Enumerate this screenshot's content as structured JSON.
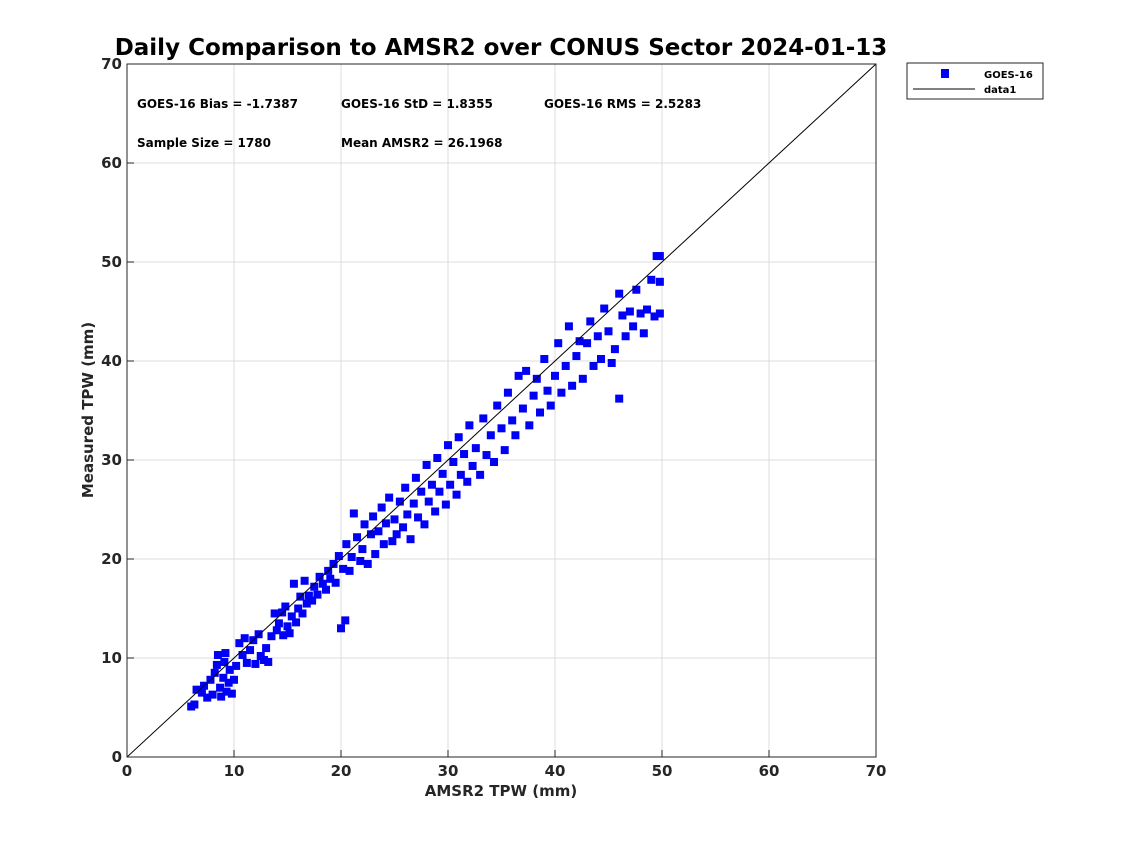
{
  "chart_data": {
    "type": "scatter",
    "title": "Daily Comparison to AMSR2 over CONUS Sector 2024-01-13",
    "xlabel": "AMSR2 TPW (mm)",
    "ylabel": "Measured TPW (mm)",
    "xlim": [
      0,
      70
    ],
    "ylim": [
      0,
      70
    ],
    "xticks": [
      "0",
      "10",
      "20",
      "30",
      "40",
      "50",
      "60",
      "70"
    ],
    "yticks": [
      "0",
      "10",
      "20",
      "30",
      "40",
      "50",
      "60",
      "70"
    ],
    "grid": true,
    "legend_placement": "outside-top-right",
    "legend": [
      "GOES-16",
      "data1"
    ],
    "stats": {
      "bias": "GOES-16 Bias = -1.7387",
      "std": "GOES-16 StD = 1.8355",
      "rms": "GOES-16 RMS = 2.5283",
      "sample_size": "Sample Size = 1780",
      "mean": "Mean AMSR2 = 26.1968"
    },
    "colors": {
      "series": "#0000f5",
      "line": "#000000",
      "grid": "#dcdcdc"
    },
    "reference_line": {
      "name": "data1",
      "x": [
        0,
        70
      ],
      "y": [
        0,
        70
      ]
    },
    "series": [
      {
        "name": "GOES-16",
        "note": "representative subset of the 1780 plotted points",
        "points": [
          [
            6,
            5.1
          ],
          [
            6.3,
            5.3
          ],
          [
            6.5,
            6.8
          ],
          [
            7,
            6.5
          ],
          [
            7.2,
            7.2
          ],
          [
            7.5,
            6
          ],
          [
            7.8,
            7.8
          ],
          [
            8,
            6.3
          ],
          [
            8.2,
            8.5
          ],
          [
            8.4,
            9.3
          ],
          [
            8.5,
            10.3
          ],
          [
            8.7,
            7
          ],
          [
            8.8,
            6.1
          ],
          [
            9,
            8
          ],
          [
            9.1,
            9.6
          ],
          [
            9.2,
            10.5
          ],
          [
            9.3,
            6.6
          ],
          [
            9.5,
            7.5
          ],
          [
            9.6,
            8.8
          ],
          [
            9.8,
            6.4
          ],
          [
            10,
            7.8
          ],
          [
            10.2,
            9.2
          ],
          [
            10.5,
            11.5
          ],
          [
            10.8,
            10.3
          ],
          [
            11,
            12
          ],
          [
            11.2,
            9.5
          ],
          [
            11.5,
            10.8
          ],
          [
            11.8,
            11.8
          ],
          [
            12,
            9.4
          ],
          [
            12.3,
            12.4
          ],
          [
            12.5,
            10.2
          ],
          [
            12.8,
            9.8
          ],
          [
            13,
            11
          ],
          [
            13.2,
            9.6
          ],
          [
            13.5,
            12.2
          ],
          [
            13.8,
            14.5
          ],
          [
            14,
            12.8
          ],
          [
            14.2,
            13.5
          ],
          [
            14.5,
            14.6
          ],
          [
            14.6,
            12.3
          ],
          [
            14.8,
            15.2
          ],
          [
            15,
            13.2
          ],
          [
            15.2,
            12.5
          ],
          [
            15.4,
            14.2
          ],
          [
            15.6,
            17.5
          ],
          [
            15.8,
            13.6
          ],
          [
            16,
            15
          ],
          [
            16.2,
            16.2
          ],
          [
            16.4,
            14.5
          ],
          [
            16.6,
            17.8
          ],
          [
            16.8,
            15.5
          ],
          [
            17,
            16.3
          ],
          [
            17.3,
            15.8
          ],
          [
            17.5,
            17.2
          ],
          [
            17.8,
            16.4
          ],
          [
            18,
            18.2
          ],
          [
            18.3,
            17.5
          ],
          [
            18.6,
            16.9
          ],
          [
            18.8,
            18.8
          ],
          [
            19,
            18
          ],
          [
            19.3,
            19.5
          ],
          [
            19.5,
            17.6
          ],
          [
            19.8,
            20.3
          ],
          [
            20,
            13
          ],
          [
            20.4,
            13.8
          ],
          [
            20.2,
            19
          ],
          [
            20.5,
            21.5
          ],
          [
            20.8,
            18.8
          ],
          [
            21,
            20.2
          ],
          [
            21.2,
            24.6
          ],
          [
            21.5,
            22.2
          ],
          [
            21.8,
            19.8
          ],
          [
            22,
            21
          ],
          [
            22.2,
            23.5
          ],
          [
            22.5,
            19.5
          ],
          [
            22.8,
            22.5
          ],
          [
            23,
            24.3
          ],
          [
            23.2,
            20.5
          ],
          [
            23.5,
            22.8
          ],
          [
            23.8,
            25.2
          ],
          [
            24,
            21.5
          ],
          [
            24.2,
            23.6
          ],
          [
            24.5,
            26.2
          ],
          [
            24.8,
            21.8
          ],
          [
            25,
            24
          ],
          [
            25.2,
            22.5
          ],
          [
            25.5,
            25.8
          ],
          [
            25.8,
            23.2
          ],
          [
            26,
            27.2
          ],
          [
            26.2,
            24.5
          ],
          [
            26.5,
            22
          ],
          [
            26.8,
            25.6
          ],
          [
            27,
            28.2
          ],
          [
            27.2,
            24.2
          ],
          [
            27.5,
            26.8
          ],
          [
            27.8,
            23.5
          ],
          [
            28,
            29.5
          ],
          [
            28.2,
            25.8
          ],
          [
            28.5,
            27.5
          ],
          [
            28.8,
            24.8
          ],
          [
            29,
            30.2
          ],
          [
            29.2,
            26.8
          ],
          [
            29.5,
            28.6
          ],
          [
            29.8,
            25.5
          ],
          [
            30,
            31.5
          ],
          [
            30.2,
            27.5
          ],
          [
            30.5,
            29.8
          ],
          [
            30.8,
            26.5
          ],
          [
            31,
            32.3
          ],
          [
            31.2,
            28.5
          ],
          [
            31.5,
            30.6
          ],
          [
            31.8,
            27.8
          ],
          [
            32,
            33.5
          ],
          [
            32.3,
            29.4
          ],
          [
            32.6,
            31.2
          ],
          [
            33,
            28.5
          ],
          [
            33.3,
            34.2
          ],
          [
            33.6,
            30.5
          ],
          [
            34,
            32.5
          ],
          [
            34.3,
            29.8
          ],
          [
            34.6,
            35.5
          ],
          [
            35,
            33.2
          ],
          [
            35.3,
            31
          ],
          [
            35.6,
            36.8
          ],
          [
            36,
            34
          ],
          [
            36.3,
            32.5
          ],
          [
            36.6,
            38.5
          ],
          [
            37,
            35.2
          ],
          [
            37.3,
            39
          ],
          [
            37.6,
            33.5
          ],
          [
            38,
            36.5
          ],
          [
            38.3,
            38.2
          ],
          [
            38.6,
            34.8
          ],
          [
            39,
            40.2
          ],
          [
            39.3,
            37
          ],
          [
            39.6,
            35.5
          ],
          [
            40,
            38.5
          ],
          [
            40.3,
            41.8
          ],
          [
            40.6,
            36.8
          ],
          [
            41,
            39.5
          ],
          [
            41.3,
            43.5
          ],
          [
            41.6,
            37.5
          ],
          [
            42,
            40.5
          ],
          [
            42.3,
            42
          ],
          [
            42.6,
            38.2
          ],
          [
            43,
            41.8
          ],
          [
            43.3,
            44
          ],
          [
            43.6,
            39.5
          ],
          [
            44,
            42.5
          ],
          [
            44.3,
            40.2
          ],
          [
            44.6,
            45.3
          ],
          [
            45,
            43
          ],
          [
            45.3,
            39.8
          ],
          [
            45.6,
            41.2
          ],
          [
            46,
            36.2
          ],
          [
            46,
            46.8
          ],
          [
            46.3,
            44.6
          ],
          [
            46.6,
            42.5
          ],
          [
            47,
            45
          ],
          [
            47.3,
            43.5
          ],
          [
            47.6,
            47.2
          ],
          [
            48,
            44.8
          ],
          [
            48.3,
            42.8
          ],
          [
            48.6,
            45.2
          ],
          [
            49,
            48.2
          ],
          [
            49.3,
            44.5
          ],
          [
            49.5,
            50.6
          ],
          [
            49.8,
            50.6
          ],
          [
            49.8,
            48
          ],
          [
            49.8,
            44.8
          ]
        ]
      }
    ]
  }
}
